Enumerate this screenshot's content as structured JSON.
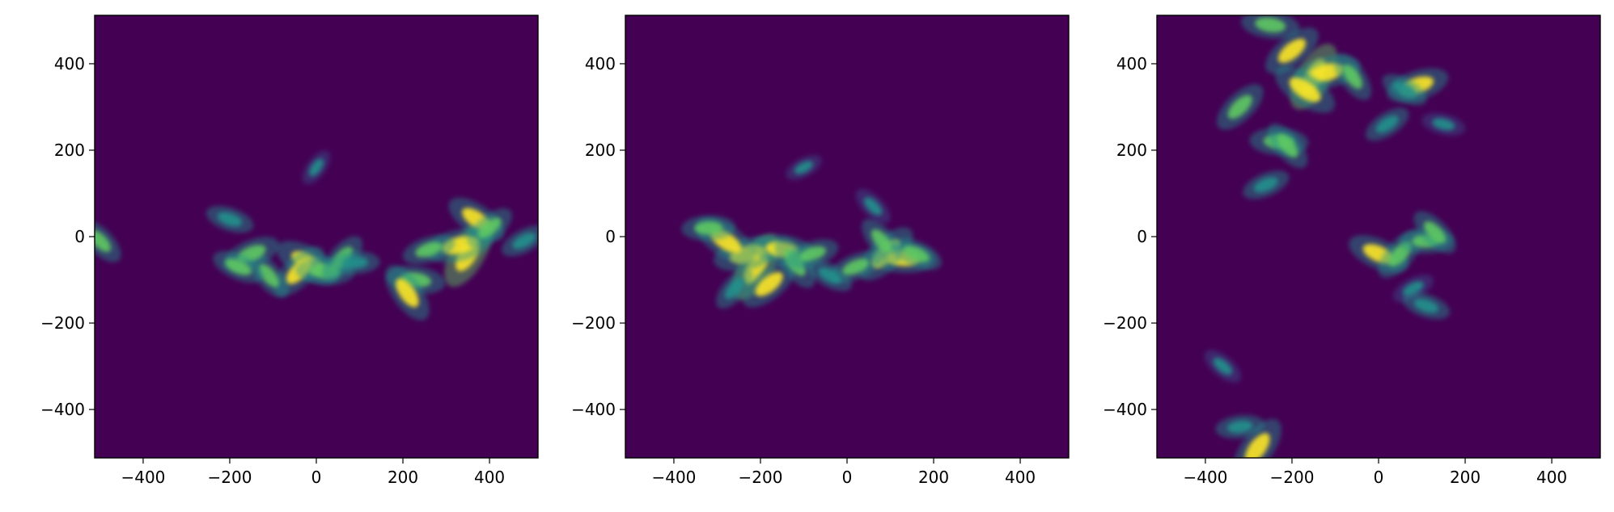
{
  "chart_data": [
    {
      "type": "heatmap",
      "colormap": "viridis",
      "xlim": [
        -512,
        512
      ],
      "ylim": [
        -512,
        512
      ],
      "xticks": [
        -400,
        -200,
        0,
        200,
        400
      ],
      "yticks": [
        -400,
        -200,
        0,
        200,
        400
      ],
      "xtick_labels": [
        "−400",
        "−200",
        "0",
        "200",
        "400"
      ],
      "ytick_labels": [
        "−400",
        "−200",
        "0",
        "200",
        "400"
      ],
      "background_color": "#440154",
      "grid": false,
      "features": [
        {
          "x": 350,
          "y": -40,
          "intensity": 1.0
        },
        {
          "x": 330,
          "y": -20,
          "intensity": 0.9
        },
        {
          "x": 370,
          "y": 40,
          "intensity": 0.8
        },
        {
          "x": 400,
          "y": 20,
          "intensity": 0.6
        },
        {
          "x": 230,
          "y": -100,
          "intensity": 0.7
        },
        {
          "x": 210,
          "y": -130,
          "intensity": 0.8
        },
        {
          "x": 260,
          "y": -30,
          "intensity": 0.6
        },
        {
          "x": -20,
          "y": -60,
          "intensity": 0.9
        },
        {
          "x": -40,
          "y": -80,
          "intensity": 0.8
        },
        {
          "x": 20,
          "y": -80,
          "intensity": 0.7
        },
        {
          "x": -110,
          "y": -90,
          "intensity": 0.6
        },
        {
          "x": -150,
          "y": -40,
          "intensity": 0.7
        },
        {
          "x": -180,
          "y": -70,
          "intensity": 0.6
        },
        {
          "x": 60,
          "y": -50,
          "intensity": 0.6
        },
        {
          "x": 90,
          "y": -60,
          "intensity": 0.5
        },
        {
          "x": -500,
          "y": -10,
          "intensity": 0.6
        },
        {
          "x": 480,
          "y": -10,
          "intensity": 0.5
        },
        {
          "x": -200,
          "y": 40,
          "intensity": 0.5
        },
        {
          "x": 0,
          "y": 160,
          "intensity": 0.3
        }
      ]
    },
    {
      "type": "heatmap",
      "colormap": "viridis",
      "xlim": [
        -512,
        512
      ],
      "ylim": [
        -512,
        512
      ],
      "xticks": [
        -400,
        -200,
        0,
        200,
        400
      ],
      "yticks": [
        -400,
        -200,
        0,
        200,
        400
      ],
      "xtick_labels": [
        "−400",
        "−200",
        "0",
        "200",
        "400"
      ],
      "ytick_labels": [
        "−400",
        "−200",
        "0",
        "200",
        "400"
      ],
      "background_color": "#440154",
      "grid": false,
      "features": [
        {
          "x": -210,
          "y": -70,
          "intensity": 1.0
        },
        {
          "x": -230,
          "y": -40,
          "intensity": 0.9
        },
        {
          "x": -280,
          "y": -10,
          "intensity": 0.9
        },
        {
          "x": -180,
          "y": -110,
          "intensity": 0.8
        },
        {
          "x": -150,
          "y": -30,
          "intensity": 0.8
        },
        {
          "x": -120,
          "y": -60,
          "intensity": 0.7
        },
        {
          "x": -80,
          "y": -40,
          "intensity": 0.6
        },
        {
          "x": -40,
          "y": -90,
          "intensity": 0.5
        },
        {
          "x": 90,
          "y": -40,
          "intensity": 0.9
        },
        {
          "x": 130,
          "y": -50,
          "intensity": 0.8
        },
        {
          "x": 80,
          "y": -10,
          "intensity": 0.6
        },
        {
          "x": 20,
          "y": -70,
          "intensity": 0.6
        },
        {
          "x": 160,
          "y": -40,
          "intensity": 0.6
        },
        {
          "x": -260,
          "y": -120,
          "intensity": 0.5
        },
        {
          "x": -320,
          "y": 20,
          "intensity": 0.6
        },
        {
          "x": 60,
          "y": 70,
          "intensity": 0.4
        },
        {
          "x": -100,
          "y": 160,
          "intensity": 0.3
        }
      ]
    },
    {
      "type": "heatmap",
      "colormap": "viridis",
      "xlim": [
        -512,
        512
      ],
      "ylim": [
        -512,
        512
      ],
      "xticks": [
        -400,
        -200,
        0,
        200,
        400
      ],
      "yticks": [
        -400,
        -200,
        0,
        200,
        400
      ],
      "xtick_labels": [
        "−400",
        "−200",
        "0",
        "200",
        "400"
      ],
      "ytick_labels": [
        "−400",
        "−200",
        "0",
        "200",
        "400"
      ],
      "background_color": "#440154",
      "grid": false,
      "features": [
        {
          "x": -150,
          "y": 370,
          "intensity": 1.0
        },
        {
          "x": -120,
          "y": 380,
          "intensity": 0.9
        },
        {
          "x": -170,
          "y": 340,
          "intensity": 0.9
        },
        {
          "x": -200,
          "y": 430,
          "intensity": 0.8
        },
        {
          "x": -250,
          "y": 490,
          "intensity": 0.7
        },
        {
          "x": -60,
          "y": 370,
          "intensity": 0.6
        },
        {
          "x": 90,
          "y": 350,
          "intensity": 0.8
        },
        {
          "x": 60,
          "y": 340,
          "intensity": 0.5
        },
        {
          "x": -320,
          "y": 300,
          "intensity": 0.7
        },
        {
          "x": -230,
          "y": 220,
          "intensity": 0.7
        },
        {
          "x": -210,
          "y": 210,
          "intensity": 0.6
        },
        {
          "x": -260,
          "y": 120,
          "intensity": 0.5
        },
        {
          "x": 0,
          "y": -40,
          "intensity": 0.8
        },
        {
          "x": 50,
          "y": -40,
          "intensity": 0.7
        },
        {
          "x": 110,
          "y": -10,
          "intensity": 0.6
        },
        {
          "x": 130,
          "y": 10,
          "intensity": 0.6
        },
        {
          "x": 80,
          "y": -120,
          "intensity": 0.4
        },
        {
          "x": 110,
          "y": -160,
          "intensity": 0.5
        },
        {
          "x": -280,
          "y": -490,
          "intensity": 0.9
        },
        {
          "x": -320,
          "y": -440,
          "intensity": 0.5
        },
        {
          "x": -360,
          "y": -300,
          "intensity": 0.4
        },
        {
          "x": 20,
          "y": 260,
          "intensity": 0.5
        },
        {
          "x": 150,
          "y": 260,
          "intensity": 0.4
        }
      ]
    }
  ]
}
